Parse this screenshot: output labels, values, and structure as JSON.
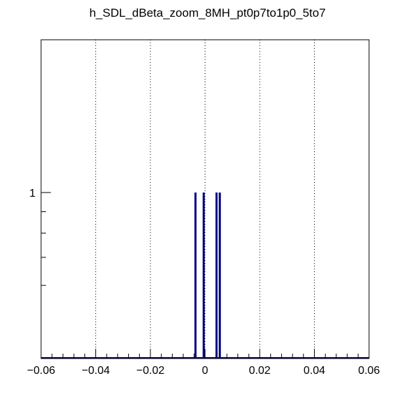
{
  "chart_data": {
    "type": "bar",
    "title": "h_SDL_dBeta_zoom_8MH_pt0p7to1p0_5to7",
    "xlabel": "",
    "ylabel": "",
    "xlim": [
      -0.06,
      0.06
    ],
    "y_scale": "log",
    "grid": "vertical dotted",
    "x_ticks": [
      -0.06,
      -0.04,
      -0.02,
      0,
      0.02,
      0.04,
      0.06
    ],
    "x_tick_labels": [
      "−0.06",
      "−0.04",
      "−0.02",
      "0",
      "0.02",
      "0.04",
      "0.06"
    ],
    "y_ticks": [
      1
    ],
    "y_tick_labels": [
      "1"
    ],
    "series": [
      {
        "color": "#000080",
        "x": [
          -0.0035,
          -0.0005,
          0.0042,
          0.0054
        ],
        "values": [
          1,
          1,
          1,
          1
        ]
      }
    ]
  }
}
